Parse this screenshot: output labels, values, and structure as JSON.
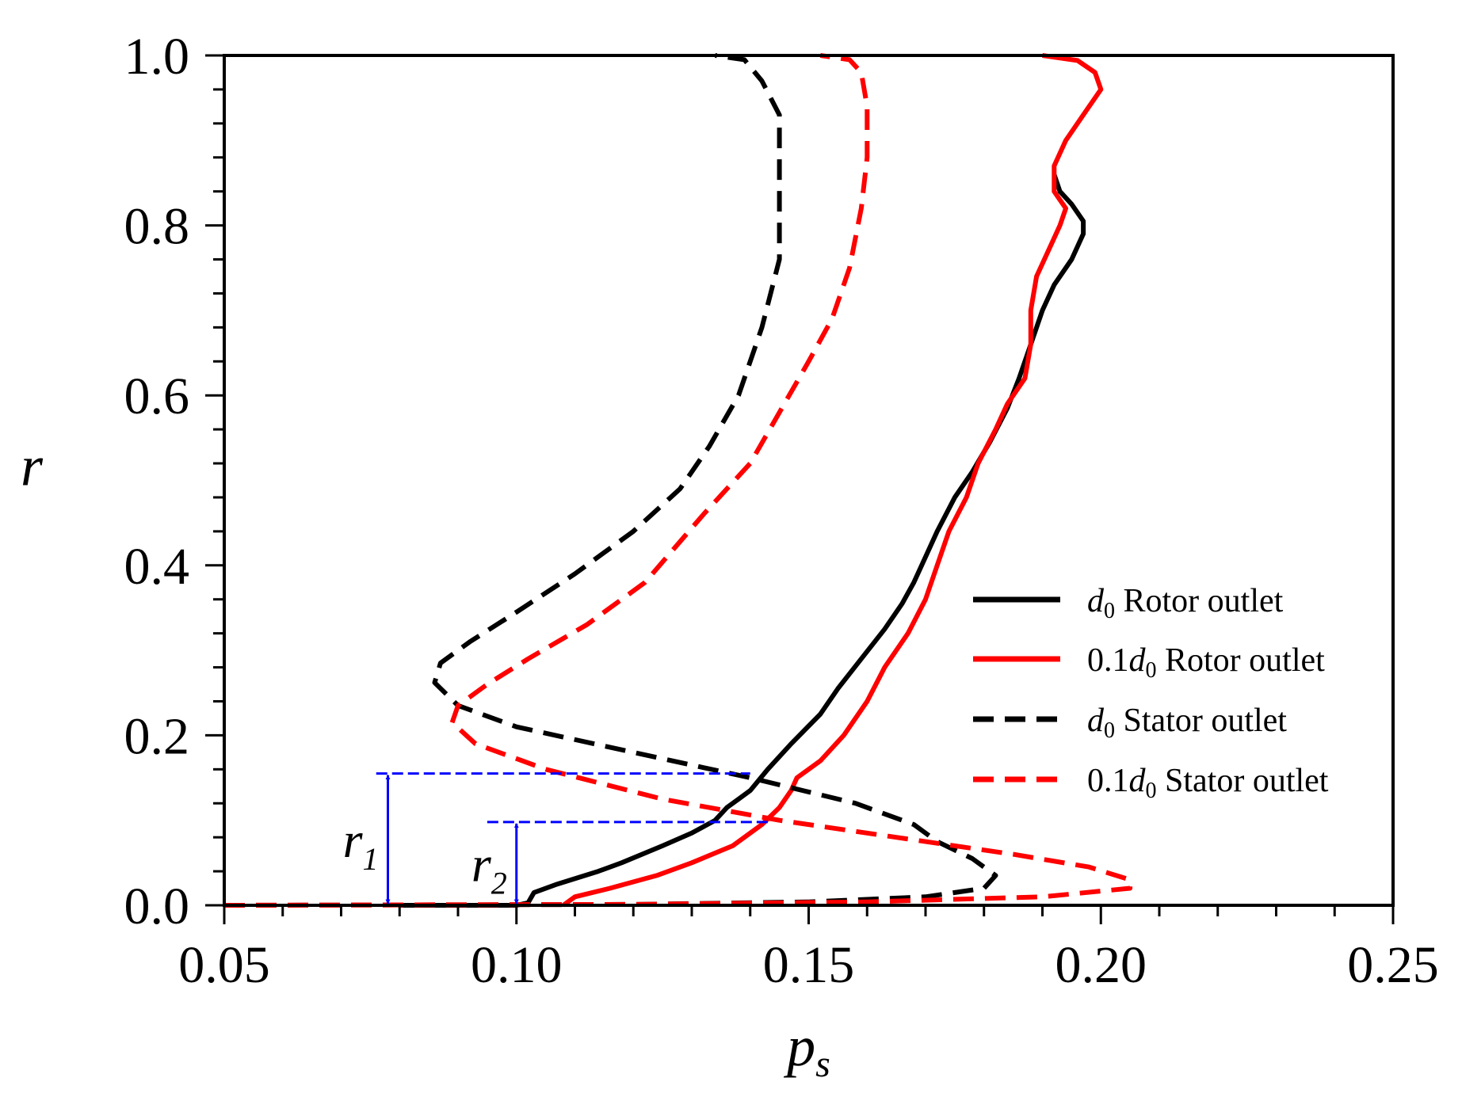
{
  "chart_data": {
    "type": "line",
    "xlabel": "p",
    "xlabel_sub": "s",
    "ylabel": "r",
    "xlim": [
      0.05,
      0.25
    ],
    "ylim": [
      0.0,
      1.0
    ],
    "xticks": [
      "0.05",
      "0.10",
      "0.15",
      "0.20",
      "0.25"
    ],
    "yticks": [
      "0.0",
      "0.2",
      "0.4",
      "0.6",
      "0.8",
      "1.0"
    ],
    "grid": false,
    "legend_position": "lower-right",
    "series": [
      {
        "name": "d0 Rotor outlet",
        "name_parts": [
          "d",
          "0",
          " Rotor outlet"
        ],
        "color": "#000000",
        "dash": "solid",
        "points": [
          [
            0.08,
            0.0
          ],
          [
            0.1,
            0.0
          ],
          [
            0.102,
            0.003
          ],
          [
            0.103,
            0.015
          ],
          [
            0.107,
            0.025
          ],
          [
            0.114,
            0.04
          ],
          [
            0.118,
            0.05
          ],
          [
            0.125,
            0.07
          ],
          [
            0.13,
            0.085
          ],
          [
            0.134,
            0.1
          ],
          [
            0.136,
            0.115
          ],
          [
            0.138,
            0.125
          ],
          [
            0.14,
            0.135
          ],
          [
            0.143,
            0.16
          ],
          [
            0.147,
            0.19
          ],
          [
            0.152,
            0.225
          ],
          [
            0.155,
            0.255
          ],
          [
            0.159,
            0.29
          ],
          [
            0.163,
            0.325
          ],
          [
            0.166,
            0.355
          ],
          [
            0.168,
            0.38
          ],
          [
            0.17,
            0.41
          ],
          [
            0.172,
            0.44
          ],
          [
            0.175,
            0.48
          ],
          [
            0.178,
            0.51
          ],
          [
            0.181,
            0.545
          ],
          [
            0.184,
            0.585
          ],
          [
            0.186,
            0.62
          ],
          [
            0.188,
            0.66
          ],
          [
            0.19,
            0.7
          ],
          [
            0.192,
            0.73
          ],
          [
            0.195,
            0.76
          ],
          [
            0.197,
            0.79
          ],
          [
            0.197,
            0.805
          ],
          [
            0.195,
            0.825
          ],
          [
            0.193,
            0.84
          ],
          [
            0.192,
            0.86
          ]
        ]
      },
      {
        "name": "0.1d0 Rotor outlet",
        "name_parts": [
          "0.1",
          "d",
          "0",
          " Rotor outlet"
        ],
        "color": "#ff0000",
        "dash": "solid",
        "points": [
          [
            0.108,
            0.0
          ],
          [
            0.11,
            0.01
          ],
          [
            0.116,
            0.02
          ],
          [
            0.124,
            0.035
          ],
          [
            0.13,
            0.05
          ],
          [
            0.137,
            0.07
          ],
          [
            0.142,
            0.095
          ],
          [
            0.145,
            0.115
          ],
          [
            0.147,
            0.135
          ],
          [
            0.148,
            0.15
          ],
          [
            0.152,
            0.17
          ],
          [
            0.156,
            0.2
          ],
          [
            0.16,
            0.24
          ],
          [
            0.163,
            0.28
          ],
          [
            0.167,
            0.32
          ],
          [
            0.17,
            0.36
          ],
          [
            0.172,
            0.4
          ],
          [
            0.174,
            0.44
          ],
          [
            0.177,
            0.48
          ],
          [
            0.179,
            0.52
          ],
          [
            0.182,
            0.56
          ],
          [
            0.184,
            0.59
          ],
          [
            0.187,
            0.62
          ],
          [
            0.188,
            0.66
          ],
          [
            0.188,
            0.7
          ],
          [
            0.189,
            0.74
          ],
          [
            0.191,
            0.77
          ],
          [
            0.193,
            0.8
          ],
          [
            0.194,
            0.82
          ],
          [
            0.192,
            0.84
          ],
          [
            0.192,
            0.87
          ],
          [
            0.194,
            0.9
          ],
          [
            0.197,
            0.93
          ],
          [
            0.2,
            0.96
          ],
          [
            0.199,
            0.98
          ],
          [
            0.196,
            0.994
          ],
          [
            0.19,
            1.0
          ]
        ]
      },
      {
        "name": "d0 Stator outlet",
        "name_parts": [
          "d",
          "0",
          " Stator outlet"
        ],
        "color": "#000000",
        "dash": "dashed",
        "points": [
          [
            0.05,
            0.0
          ],
          [
            0.12,
            0.001
          ],
          [
            0.15,
            0.004
          ],
          [
            0.17,
            0.01
          ],
          [
            0.18,
            0.02
          ],
          [
            0.182,
            0.035
          ],
          [
            0.178,
            0.055
          ],
          [
            0.172,
            0.075
          ],
          [
            0.168,
            0.095
          ],
          [
            0.158,
            0.12
          ],
          [
            0.14,
            0.15
          ],
          [
            0.12,
            0.18
          ],
          [
            0.1,
            0.21
          ],
          [
            0.09,
            0.235
          ],
          [
            0.086,
            0.262
          ],
          [
            0.087,
            0.285
          ],
          [
            0.092,
            0.31
          ],
          [
            0.1,
            0.345
          ],
          [
            0.11,
            0.39
          ],
          [
            0.12,
            0.44
          ],
          [
            0.128,
            0.49
          ],
          [
            0.133,
            0.54
          ],
          [
            0.138,
            0.6
          ],
          [
            0.142,
            0.68
          ],
          [
            0.145,
            0.76
          ],
          [
            0.145,
            0.85
          ],
          [
            0.145,
            0.93
          ],
          [
            0.142,
            0.97
          ],
          [
            0.139,
            0.995
          ],
          [
            0.134,
            1.0
          ]
        ]
      },
      {
        "name": "0.1d0 Stator outlet",
        "name_parts": [
          "0.1",
          "d",
          "0",
          " Stator outlet"
        ],
        "color": "#ff0000",
        "dash": "dashed",
        "points": [
          [
            0.05,
            0.0
          ],
          [
            0.12,
            0.001
          ],
          [
            0.16,
            0.004
          ],
          [
            0.19,
            0.01
          ],
          [
            0.205,
            0.02
          ],
          [
            0.205,
            0.03
          ],
          [
            0.198,
            0.045
          ],
          [
            0.185,
            0.06
          ],
          [
            0.165,
            0.08
          ],
          [
            0.145,
            0.1
          ],
          [
            0.125,
            0.125
          ],
          [
            0.105,
            0.16
          ],
          [
            0.093,
            0.19
          ],
          [
            0.089,
            0.215
          ],
          [
            0.09,
            0.235
          ],
          [
            0.095,
            0.26
          ],
          [
            0.102,
            0.29
          ],
          [
            0.112,
            0.33
          ],
          [
            0.122,
            0.38
          ],
          [
            0.132,
            0.46
          ],
          [
            0.14,
            0.52
          ],
          [
            0.145,
            0.58
          ],
          [
            0.15,
            0.64
          ],
          [
            0.154,
            0.69
          ],
          [
            0.157,
            0.75
          ],
          [
            0.159,
            0.82
          ],
          [
            0.16,
            0.88
          ],
          [
            0.16,
            0.94
          ],
          [
            0.159,
            0.98
          ],
          [
            0.157,
            0.995
          ],
          [
            0.152,
            1.0
          ]
        ]
      }
    ],
    "annotations": {
      "r1": {
        "label": "r",
        "sub": "1",
        "x": 0.078,
        "y_from": 0.0,
        "y_to": 0.155,
        "line_from_x": 0.076,
        "line_to_x": 0.14
      },
      "r2": {
        "label": "r",
        "sub": "2",
        "x": 0.1,
        "y_from": 0.0,
        "y_to": 0.098,
        "line_from_x": 0.095,
        "line_to_x": 0.143
      },
      "color": "#0000ff"
    }
  }
}
